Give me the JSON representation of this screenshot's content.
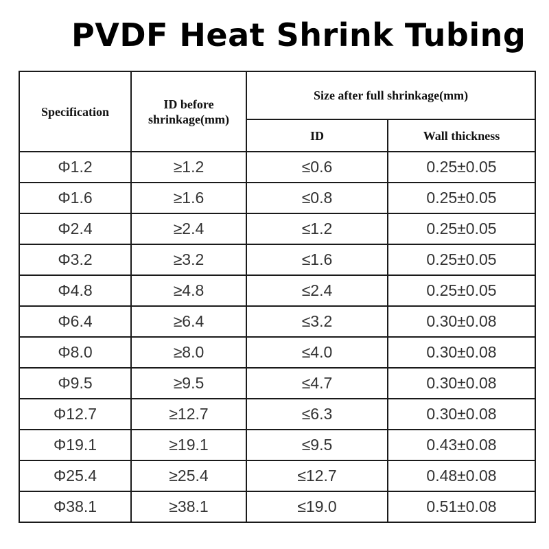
{
  "title": "PVDF Heat Shrink Tubing",
  "table": {
    "headers": {
      "specification": "Specification",
      "id_before": "ID before shrinkage(mm)",
      "size_after": "Size after full shrinkage(mm)",
      "id_after": "ID",
      "wall_thickness": "Wall thickness"
    },
    "rows": [
      {
        "spec": "Φ1.2",
        "id_before": "≥1.2",
        "id_after": "≤0.6",
        "wall": "0.25±0.05"
      },
      {
        "spec": "Φ1.6",
        "id_before": "≥1.6",
        "id_after": "≤0.8",
        "wall": "0.25±0.05"
      },
      {
        "spec": "Φ2.4",
        "id_before": "≥2.4",
        "id_after": "≤1.2",
        "wall": "0.25±0.05"
      },
      {
        "spec": "Φ3.2",
        "id_before": "≥3.2",
        "id_after": "≤1.6",
        "wall": "0.25±0.05"
      },
      {
        "spec": "Φ4.8",
        "id_before": "≥4.8",
        "id_after": "≤2.4",
        "wall": "0.25±0.05"
      },
      {
        "spec": "Φ6.4",
        "id_before": "≥6.4",
        "id_after": "≤3.2",
        "wall": "0.30±0.08"
      },
      {
        "spec": "Φ8.0",
        "id_before": "≥8.0",
        "id_after": "≤4.0",
        "wall": "0.30±0.08"
      },
      {
        "spec": "Φ9.5",
        "id_before": "≥9.5",
        "id_after": "≤4.7",
        "wall": "0.30±0.08"
      },
      {
        "spec": "Φ12.7",
        "id_before": "≥12.7",
        "id_after": "≤6.3",
        "wall": "0.30±0.08"
      },
      {
        "spec": "Φ19.1",
        "id_before": "≥19.1",
        "id_after": "≤9.5",
        "wall": "0.43±0.08"
      },
      {
        "spec": "Φ25.4",
        "id_before": "≥25.4",
        "id_after": "≤12.7",
        "wall": "0.48±0.08"
      },
      {
        "spec": "Φ38.1",
        "id_before": "≥38.1",
        "id_after": "≤19.0",
        "wall": "0.51±0.08"
      }
    ]
  }
}
